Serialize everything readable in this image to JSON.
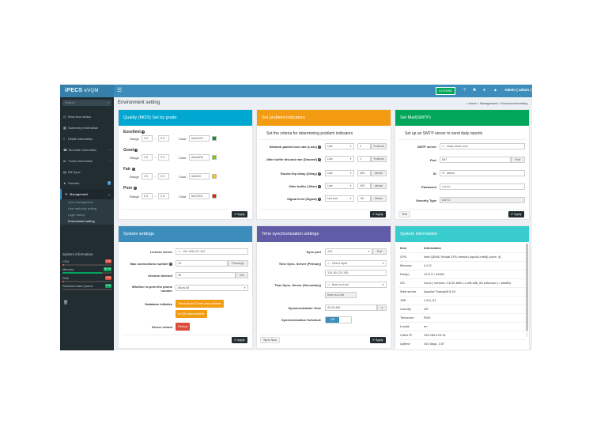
{
  "topbar": {
    "logo": "iPECS",
    "logo_sub": " eVQM",
    "license": "LICENSE",
    "user": "Admin ( admin )"
  },
  "sidebar": {
    "search_placeholder": "Search",
    "items": [
      {
        "label": "Real-time status",
        "icon": "clock-icon"
      },
      {
        "label": "Summary Information",
        "icon": "chart-icon"
      },
      {
        "label": "Detail Information",
        "icon": "list-icon"
      },
      {
        "label": "Terminal Information",
        "icon": "phone-icon"
      },
      {
        "label": "Trunk Information",
        "icon": "trunk-icon"
      },
      {
        "label": "DB Sync.",
        "icon": "database-icon"
      },
      {
        "label": "Favorite",
        "icon": "star-icon",
        "badge": "5"
      },
      {
        "label": "Management",
        "icon": "gear-icon"
      }
    ],
    "sub_items": [
      "User management",
      "User authority setting",
      "Login history",
      "Environment setting"
    ],
    "sysinfo_title": "System information",
    "meters": [
      {
        "label": "CPU",
        "value": "4 %",
        "fraction": 0.04,
        "color": "#dd4b39"
      },
      {
        "label": "Memory",
        "value": "81 %",
        "fraction": 0.81,
        "color": "#00a65a"
      },
      {
        "label": "Disk",
        "value": "4 %",
        "fraction": 0.04,
        "color": "#dd4b39"
      },
      {
        "label": "Received data Queue",
        "value": "0 %",
        "fraction": 0.0,
        "color": "#00a65a"
      }
    ]
  },
  "page": {
    "title": "Environment setting",
    "crumbs": [
      "Home",
      "Management",
      "Environment setting"
    ]
  },
  "quality": {
    "title": "Quality (MOS) Set by grade",
    "range_label": "Range",
    "color_label": "Color",
    "apply": "Apply",
    "grades": [
      {
        "name": "Excellent",
        "min": "3.9",
        "max": "5.0",
        "color": "#0a9229"
      },
      {
        "name": "Good",
        "min": "3.5",
        "max": "3.9",
        "color": "#6ad006"
      },
      {
        "name": "Fair",
        "min": "2.5",
        "max": "3.5",
        "color": "#ffc000"
      },
      {
        "name": "Poor",
        "min": "0.0",
        "max": "2.5",
        "color": "#e22201"
      }
    ]
  },
  "problem": {
    "title": "Set problem indicators",
    "desc": "Set the criteria for determining problem indicators",
    "apply": "Apply",
    "rows": [
      {
        "label": "Network packet loss rate (Loss)",
        "select": "Use",
        "value": "2",
        "unit": "% above"
      },
      {
        "label": "Jitter buffer discard rate (Discard)",
        "select": "Use",
        "value": "1",
        "unit": "% above"
      },
      {
        "label": "Round trip delay (Delay)",
        "select": "Use",
        "value": "400",
        "unit": "above"
      },
      {
        "label": "Jitter buffer (Jitter)",
        "select": "Use",
        "value": "100",
        "unit": "above"
      },
      {
        "label": "Signal level (Signal)",
        "select": "Not use",
        "value": "-30",
        "unit": "below"
      }
    ]
  },
  "mail": {
    "title": "Set Mail(SMTP)",
    "desc": "Set up an SMTP server to send daily reports",
    "server_label": "SMTP server",
    "server": "smtp.naver.com",
    "port_label": "Port",
    "port": "587",
    "port_addon": "Port",
    "id_label": "ID",
    "id": "admin",
    "pw_label": "Password",
    "pw": "••••••••",
    "sec_label": "Security Type",
    "sec": "AUTO",
    "test": "Test",
    "apply": "Apply"
  },
  "system": {
    "title": "System settings",
    "license_label": "License server",
    "license": "192.168.147.102",
    "maxconn_label": "Max connections number",
    "maxconn": "10",
    "maxconn_unit": "Person(s)",
    "timeout_label": "Session timeout",
    "timeout": "30",
    "timeout_unit": "min",
    "print_label": "Whether to print the phone number",
    "print": "Allow All",
    "dbinit_label": "Database initialize",
    "dbinit_btn1": "Terminal and Trunk data initialize",
    "dbinit_btn2": "eVQM data initialize",
    "reboot_label": "Server reboot",
    "reboot": "Reboot",
    "apply": "Apply"
  },
  "timesync": {
    "title": "Time synchronization settings",
    "port_label": "Sync port",
    "port": "123",
    "port_addon": "Port",
    "primary_label": "Time Sync. Server (Primary)",
    "primary_sel": "Direct input",
    "primary": "124.48.120.155",
    "secondary_label": "Time Sync. Server (Secondary)",
    "secondary_sel": "time.nuri.net",
    "secondary": "time.nuri.net",
    "synctime_label": "Synchronization Time",
    "synctime": "05:15 AM",
    "schedule_label": "Synchronization Schedule",
    "schedule": "ON",
    "sync_now": "Sync Now",
    "apply": "Apply"
  },
  "sysinfo": {
    "title": "System information",
    "head_item": "Item",
    "head_info": "Information",
    "rows": [
      {
        "k": "CPU",
        "v": "Intel QEMU Virtual CPU version (cpu64-rhel6) (core: 4)"
      },
      {
        "k": "Memory",
        "v": "4.0 G"
      },
      {
        "k": "Disk(/)",
        "v": "12.6 G / 46.8G"
      },
      {
        "k": "OS",
        "v": "Linux ( version: 2.6.32-696.1.1.el6.x86_64 unknown ) / amd64"
      },
      {
        "k": "Web server",
        "v": "Apache Tomcat/8.5.16"
      },
      {
        "k": "JRE",
        "v": "1.8.0_91"
      },
      {
        "k": "Country",
        "v": "US"
      },
      {
        "k": "Timezone",
        "v": "ROK"
      },
      {
        "k": "Locale",
        "v": "en"
      },
      {
        "k": "Client IP",
        "v": "192.168.123.91"
      },
      {
        "k": "Uptime",
        "v": "410 days, 1:57"
      }
    ]
  }
}
